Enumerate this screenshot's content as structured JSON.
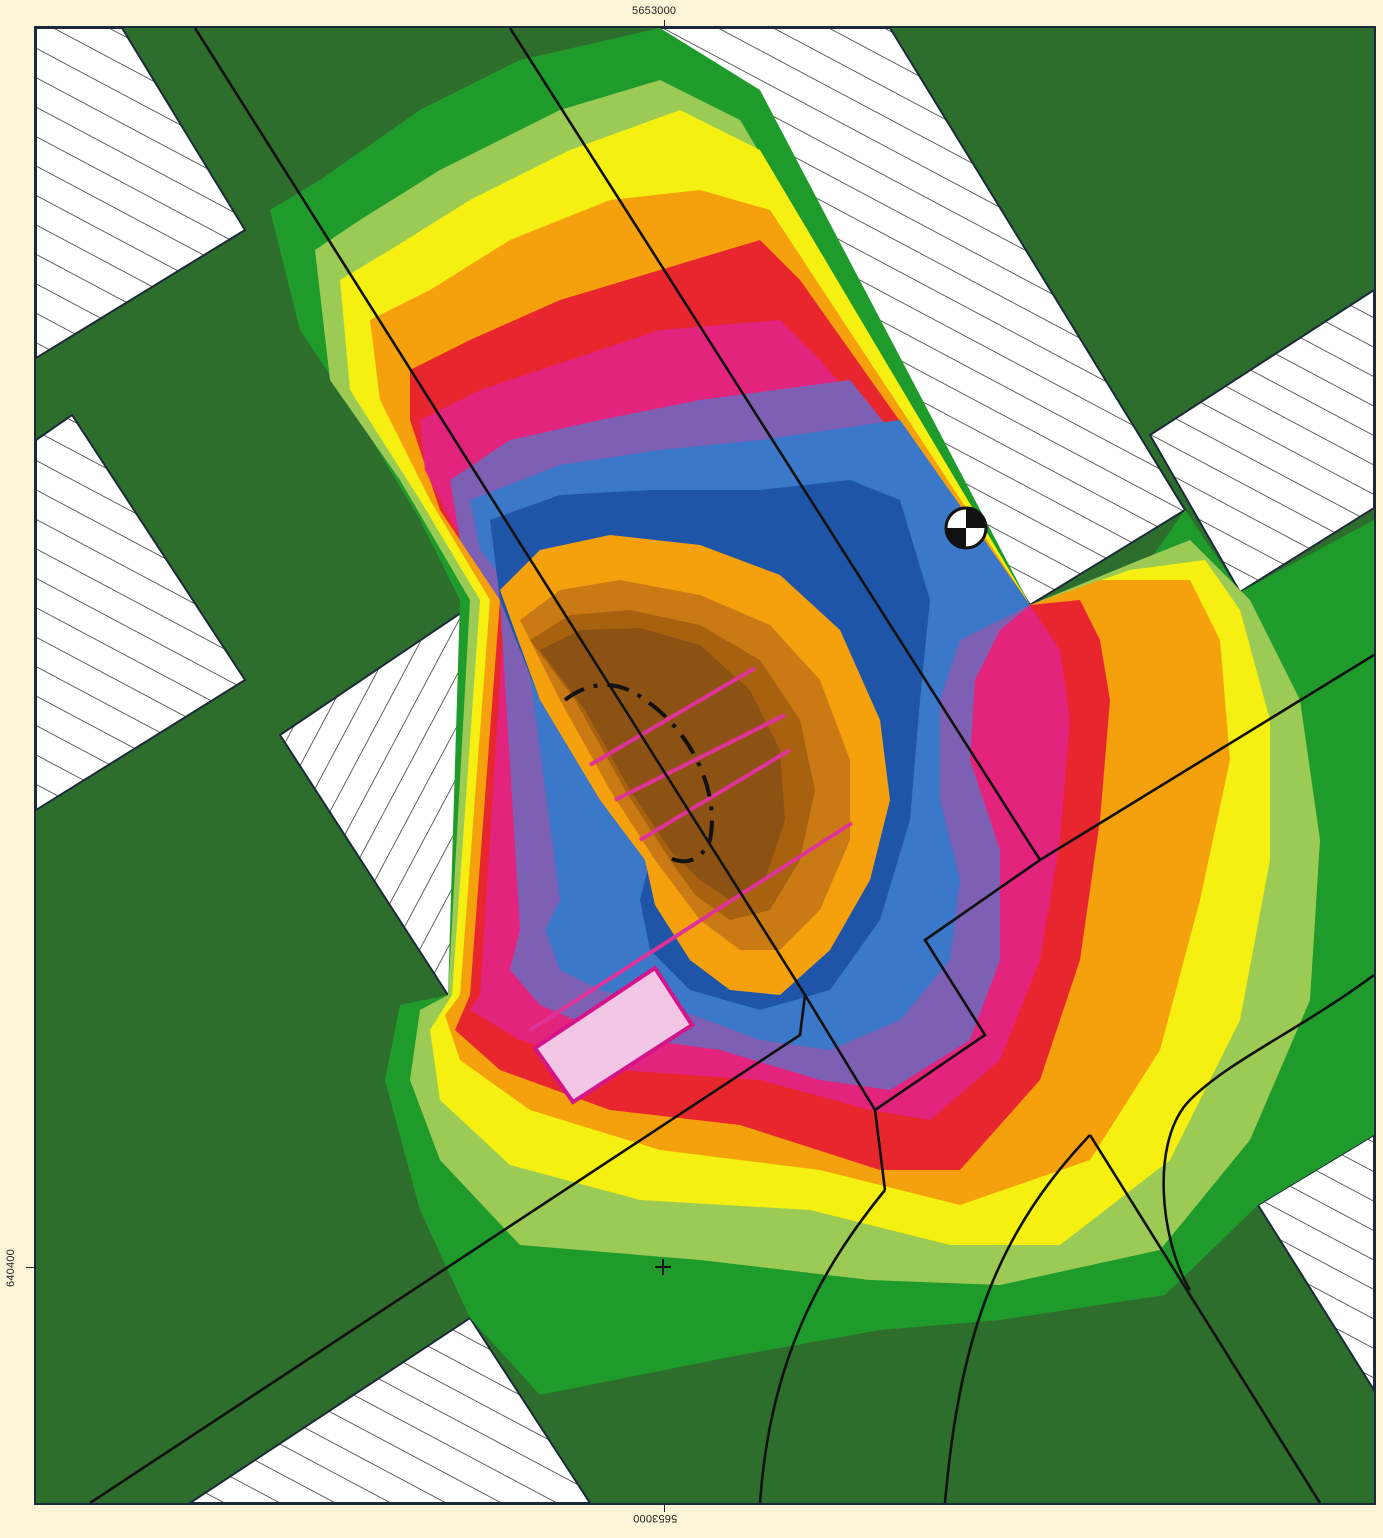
{
  "map": {
    "coords": {
      "top": "5653000",
      "bottom": "5653000",
      "left": "640400"
    },
    "colors": {
      "background": "#fbf4d6",
      "dark_green": "#2d6e2c",
      "green": "#1f9b2c",
      "light_green": "#9ccb55",
      "yellow": "#f5ef12",
      "orange": "#f5a10e",
      "red": "#e8262e",
      "magenta": "#e3247c",
      "purple": "#7d5fb4",
      "blue": "#3b78c9",
      "dark_blue": "#1f55a9",
      "brown": "#8c5214",
      "building": "#f4c6e6",
      "hatch": "#ffffff",
      "line": "#111111",
      "pink_line": "#e0339a"
    },
    "icons": {
      "center_marker": "crosshair-plus-icon",
      "control_point": "survey-point-icon"
    }
  }
}
